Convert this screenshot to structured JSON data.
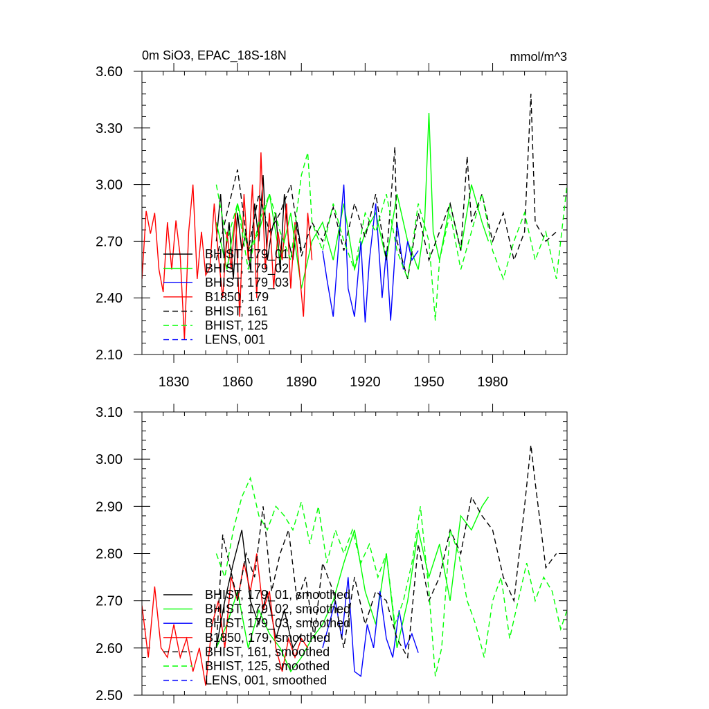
{
  "chart_data": [
    {
      "type": "line",
      "title": "0m SiO3, EPAC_18S-18N",
      "units": "mmol/m^3",
      "xlabel": "",
      "ylabel": "",
      "xlim": [
        1815,
        2015
      ],
      "ylim": [
        2.1,
        3.6
      ],
      "xticks": [
        1830,
        1860,
        1890,
        1920,
        1950,
        1980
      ],
      "xtick_labels": [
        "1830",
        "1860",
        "1890",
        "1920",
        "1950",
        "1980"
      ],
      "yticks": [
        2.1,
        2.4,
        2.7,
        3.0,
        3.3,
        3.6
      ],
      "ytick_labels": [
        "2.10",
        "2.40",
        "2.70",
        "3.00",
        "3.30",
        "3.60"
      ],
      "legend_position": "bottom-left",
      "series": [
        {
          "name": "BHIST, 179_01",
          "color": "#000000",
          "dash": "solid",
          "x": [
            1850,
            1852,
            1854,
            1856,
            1858,
            1860,
            1862,
            1864,
            1866,
            1868,
            1870,
            1872,
            1874,
            1876,
            1878,
            1880,
            1882,
            1884,
            1886,
            1888,
            1890
          ],
          "y": [
            2.7,
            2.95,
            2.6,
            2.8,
            2.5,
            2.85,
            2.65,
            2.75,
            2.55,
            2.9,
            2.7,
            3.05,
            2.6,
            2.75,
            2.85,
            2.55,
            2.95,
            2.7,
            2.6,
            2.8,
            2.65
          ]
        },
        {
          "name": "BHIST, 179_02",
          "color": "#00ff00",
          "dash": "solid",
          "x": [
            1850,
            1855,
            1860,
            1865,
            1870,
            1875,
            1880,
            1885,
            1890,
            1895,
            1900,
            1905,
            1910,
            1915,
            1920,
            1925,
            1930,
            1935,
            1940,
            1945,
            1948,
            1950,
            1952,
            1955,
            1960,
            1965,
            1970,
            1975,
            1978
          ],
          "y": [
            2.8,
            2.55,
            2.9,
            2.65,
            2.75,
            2.95,
            2.6,
            2.85,
            2.45,
            2.7,
            2.8,
            2.6,
            2.9,
            2.55,
            2.75,
            2.85,
            2.6,
            2.95,
            2.7,
            2.55,
            2.8,
            3.38,
            2.75,
            2.6,
            2.9,
            2.65,
            3.0,
            2.8,
            2.7
          ]
        },
        {
          "name": "BHIST, 179_03",
          "color": "#0000ff",
          "dash": "solid",
          "x": [
            1900,
            1902,
            1905,
            1908,
            1910,
            1912,
            1915,
            1918,
            1920,
            1922,
            1925,
            1928,
            1930,
            1932,
            1935,
            1938,
            1940,
            1942,
            1945
          ],
          "y": [
            2.65,
            2.5,
            2.3,
            2.75,
            3.0,
            2.45,
            2.3,
            2.7,
            2.27,
            2.6,
            2.9,
            2.4,
            2.65,
            2.28,
            2.8,
            2.55,
            2.7,
            2.6,
            2.65
          ]
        },
        {
          "name": "B1850, 179",
          "color": "#ff0000",
          "dash": "solid",
          "x": [
            1815,
            1817,
            1819,
            1821,
            1823,
            1825,
            1827,
            1829,
            1831,
            1833,
            1835,
            1837,
            1839,
            1841,
            1843,
            1845,
            1847,
            1849,
            1851,
            1853,
            1855,
            1857,
            1859,
            1861,
            1863,
            1865,
            1867,
            1869,
            1871,
            1873,
            1875,
            1877,
            1879,
            1881,
            1883,
            1885,
            1887,
            1889,
            1891,
            1893,
            1895
          ],
          "y": [
            2.5,
            2.86,
            2.74,
            2.85,
            2.55,
            2.43,
            2.8,
            2.55,
            2.81,
            2.62,
            2.18,
            2.75,
            3.0,
            2.5,
            2.75,
            2.52,
            2.56,
            2.9,
            2.62,
            2.4,
            2.75,
            2.55,
            2.85,
            2.3,
            2.95,
            2.6,
            3.0,
            2.4,
            3.17,
            2.55,
            2.85,
            2.45,
            2.75,
            2.6,
            2.9,
            2.45,
            2.8,
            2.55,
            2.3,
            2.85,
            2.6
          ]
        },
        {
          "name": "BHIST, 161",
          "color": "#000000",
          "dash": "dashed",
          "x": [
            1850,
            1855,
            1860,
            1865,
            1870,
            1875,
            1880,
            1885,
            1890,
            1895,
            1900,
            1905,
            1910,
            1915,
            1920,
            1925,
            1930,
            1934,
            1935,
            1940,
            1945,
            1950,
            1955,
            1960,
            1965,
            1968,
            1970,
            1975,
            1980,
            1985,
            1990,
            1995,
            1998,
            2000,
            2005,
            2010
          ],
          "y": [
            2.6,
            2.85,
            3.08,
            2.65,
            2.95,
            2.75,
            2.85,
            3.0,
            2.62,
            2.8,
            2.7,
            2.88,
            2.65,
            2.9,
            2.72,
            2.95,
            2.6,
            3.2,
            2.7,
            2.5,
            2.85,
            2.6,
            2.75,
            2.9,
            2.65,
            3.15,
            2.8,
            2.95,
            2.7,
            2.85,
            2.6,
            2.75,
            3.48,
            2.8,
            2.7,
            2.75
          ]
        },
        {
          "name": "BHIST, 125",
          "color": "#00ff00",
          "dash": "dashed",
          "x": [
            1850,
            1855,
            1860,
            1865,
            1870,
            1875,
            1880,
            1885,
            1890,
            1893,
            1895,
            1900,
            1905,
            1910,
            1915,
            1920,
            1925,
            1930,
            1935,
            1940,
            1945,
            1950,
            1953,
            1955,
            1960,
            1965,
            1970,
            1975,
            1980,
            1985,
            1990,
            1995,
            2000,
            2005,
            2010,
            2015
          ],
          "y": [
            3.0,
            2.7,
            2.9,
            2.55,
            2.8,
            2.95,
            2.75,
            2.6,
            3.05,
            3.17,
            2.8,
            2.65,
            2.9,
            2.7,
            2.55,
            2.85,
            2.75,
            2.95,
            2.65,
            2.5,
            2.9,
            2.7,
            2.28,
            2.6,
            2.85,
            2.55,
            2.75,
            2.95,
            2.65,
            2.5,
            2.7,
            2.85,
            2.6,
            2.75,
            2.5,
            3.0
          ]
        },
        {
          "name": "LENS, 001",
          "color": "#0000ff",
          "dash": "dashed",
          "x": [],
          "y": []
        }
      ]
    },
    {
      "type": "line",
      "title": "",
      "xlabel": "",
      "ylabel": "",
      "xlim": [
        1815,
        2015
      ],
      "ylim": [
        2.5,
        3.1
      ],
      "yticks": [
        2.5,
        2.6,
        2.7,
        2.8,
        2.9,
        3.0,
        3.1
      ],
      "ytick_labels": [
        "2.50",
        "2.60",
        "2.70",
        "2.80",
        "2.90",
        "3.00",
        "3.10"
      ],
      "legend_position": "bottom-left",
      "series": [
        {
          "name": "BHIST, 179_01, smoothed",
          "color": "#000000",
          "dash": "solid",
          "x": [
            1850,
            1854,
            1858,
            1862,
            1866,
            1870,
            1874,
            1878,
            1882,
            1886,
            1890
          ],
          "y": [
            2.6,
            2.7,
            2.78,
            2.85,
            2.7,
            2.65,
            2.72,
            2.62,
            2.68,
            2.6,
            2.63
          ]
        },
        {
          "name": "BHIST, 179_02, smoothed",
          "color": "#00ff00",
          "dash": "solid",
          "x": [
            1850,
            1855,
            1860,
            1865,
            1870,
            1875,
            1880,
            1885,
            1890,
            1895,
            1900,
            1905,
            1910,
            1915,
            1920,
            1925,
            1930,
            1935,
            1940,
            1945,
            1950,
            1955,
            1960,
            1965,
            1970,
            1975,
            1978
          ],
          "y": [
            2.6,
            2.65,
            2.72,
            2.6,
            2.68,
            2.63,
            2.6,
            2.55,
            2.58,
            2.62,
            2.65,
            2.7,
            2.78,
            2.85,
            2.72,
            2.65,
            2.8,
            2.6,
            2.7,
            2.85,
            2.75,
            2.82,
            2.7,
            2.88,
            2.85,
            2.9,
            2.92
          ]
        },
        {
          "name": "BHIST, 179_03, smoothed",
          "color": "#0000ff",
          "dash": "solid",
          "x": [
            1900,
            1903,
            1906,
            1909,
            1912,
            1915,
            1918,
            1921,
            1924,
            1927,
            1930,
            1933,
            1936,
            1939,
            1942,
            1945
          ],
          "y": [
            2.6,
            2.65,
            2.7,
            2.62,
            2.75,
            2.55,
            2.54,
            2.65,
            2.6,
            2.72,
            2.62,
            2.58,
            2.68,
            2.6,
            2.63,
            2.59
          ]
        },
        {
          "name": "B1850, 179, smoothed",
          "color": "#ff0000",
          "dash": "solid",
          "x": [
            1815,
            1818,
            1821,
            1824,
            1827,
            1830,
            1833,
            1836,
            1839,
            1842,
            1845,
            1848,
            1851,
            1854,
            1857,
            1860,
            1863,
            1866,
            1869,
            1872,
            1875,
            1878,
            1881,
            1884,
            1887,
            1890,
            1893
          ],
          "y": [
            2.69,
            2.58,
            2.73,
            2.6,
            2.58,
            2.65,
            2.58,
            2.62,
            2.55,
            2.6,
            2.52,
            2.65,
            2.7,
            2.6,
            2.75,
            2.7,
            2.78,
            2.72,
            2.8,
            2.68,
            2.72,
            2.6,
            2.55,
            2.62,
            2.58,
            2.62,
            2.6
          ]
        },
        {
          "name": "BHIST, 161, smoothed",
          "color": "#000000",
          "dash": "dashed",
          "x": [
            1850,
            1853,
            1856,
            1860,
            1864,
            1868,
            1872,
            1876,
            1880,
            1884,
            1888,
            1892,
            1896,
            1900,
            1905,
            1910,
            1915,
            1920,
            1925,
            1930,
            1935,
            1940,
            1945,
            1950,
            1955,
            1960,
            1965,
            1970,
            1975,
            1980,
            1985,
            1990,
            1995,
            1998,
            2000,
            2005,
            2010
          ],
          "y": [
            2.6,
            2.84,
            2.78,
            2.7,
            2.8,
            2.75,
            2.9,
            2.72,
            2.8,
            2.85,
            2.7,
            2.75,
            2.62,
            2.78,
            2.72,
            2.6,
            2.75,
            2.65,
            2.72,
            2.7,
            2.62,
            2.58,
            2.82,
            2.7,
            2.75,
            2.85,
            2.8,
            2.92,
            2.88,
            2.85,
            2.75,
            2.7,
            2.9,
            3.03,
            2.95,
            2.77,
            2.8
          ]
        },
        {
          "name": "BHIST, 125, smoothed",
          "color": "#00ff00",
          "dash": "dashed",
          "x": [
            1850,
            1854,
            1858,
            1862,
            1866,
            1870,
            1874,
            1878,
            1882,
            1886,
            1890,
            1894,
            1898,
            1902,
            1906,
            1910,
            1914,
            1918,
            1922,
            1926,
            1930,
            1934,
            1938,
            1942,
            1946,
            1950,
            1953,
            1956,
            1960,
            1964,
            1968,
            1972,
            1976,
            1980,
            1984,
            1988,
            1992,
            1996,
            2000,
            2004,
            2008,
            2012,
            2015
          ],
          "y": [
            2.8,
            2.75,
            2.85,
            2.92,
            2.96,
            2.88,
            2.85,
            2.9,
            2.88,
            2.85,
            2.91,
            2.82,
            2.9,
            2.78,
            2.85,
            2.8,
            2.85,
            2.78,
            2.82,
            2.75,
            2.8,
            2.65,
            2.7,
            2.78,
            2.9,
            2.72,
            2.54,
            2.6,
            2.85,
            2.8,
            2.7,
            2.65,
            2.58,
            2.7,
            2.75,
            2.62,
            2.7,
            2.78,
            2.7,
            2.75,
            2.72,
            2.64,
            2.68
          ]
        },
        {
          "name": "LENS, 001, smoothed",
          "color": "#0000ff",
          "dash": "dashed",
          "x": [],
          "y": []
        }
      ]
    }
  ]
}
